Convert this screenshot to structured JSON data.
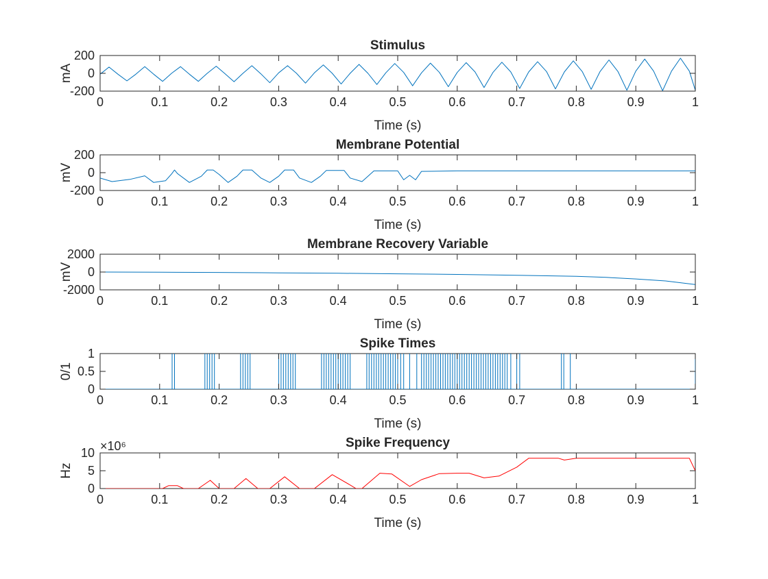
{
  "figure": {
    "background": "#ffffff",
    "axis_color": "#262626"
  },
  "chart_data": [
    {
      "type": "line",
      "title": "Stimulus",
      "xlabel": "Time (s)",
      "ylabel": "mA",
      "xlim": [
        0,
        1
      ],
      "ylim": [
        -200,
        200
      ],
      "xticks": [
        "0",
        "0.1",
        "0.2",
        "0.3",
        "0.4",
        "0.5",
        "0.6",
        "0.7",
        "0.8",
        "0.9",
        "1"
      ],
      "yticks": [
        "-200",
        "0",
        "200"
      ],
      "exponent_label": "",
      "series": [
        {
          "name": "stimulus",
          "color": "#0072BD",
          "points": [
            [
              0,
              -10
            ],
            [
              0.015,
              70
            ],
            [
              0.03,
              -10
            ],
            [
              0.045,
              -85
            ],
            [
              0.06,
              -10
            ],
            [
              0.075,
              75
            ],
            [
              0.09,
              -10
            ],
            [
              0.105,
              -90
            ],
            [
              0.12,
              0
            ],
            [
              0.135,
              75
            ],
            [
              0.15,
              -10
            ],
            [
              0.165,
              -90
            ],
            [
              0.18,
              0
            ],
            [
              0.195,
              80
            ],
            [
              0.21,
              -5
            ],
            [
              0.225,
              -95
            ],
            [
              0.24,
              0
            ],
            [
              0.255,
              85
            ],
            [
              0.27,
              -5
            ],
            [
              0.285,
              -105
            ],
            [
              0.3,
              5
            ],
            [
              0.315,
              85
            ],
            [
              0.33,
              0
            ],
            [
              0.345,
              -110
            ],
            [
              0.36,
              5
            ],
            [
              0.375,
              95
            ],
            [
              0.39,
              0
            ],
            [
              0.405,
              -120
            ],
            [
              0.42,
              0
            ],
            [
              0.435,
              100
            ],
            [
              0.45,
              0
            ],
            [
              0.465,
              -125
            ],
            [
              0.48,
              5
            ],
            [
              0.495,
              110
            ],
            [
              0.51,
              10
            ],
            [
              0.525,
              -140
            ],
            [
              0.54,
              5
            ],
            [
              0.555,
              115
            ],
            [
              0.57,
              10
            ],
            [
              0.585,
              -150
            ],
            [
              0.6,
              10
            ],
            [
              0.615,
              120
            ],
            [
              0.63,
              15
            ],
            [
              0.645,
              -160
            ],
            [
              0.66,
              10
            ],
            [
              0.675,
              125
            ],
            [
              0.69,
              15
            ],
            [
              0.705,
              -170
            ],
            [
              0.72,
              15
            ],
            [
              0.735,
              130
            ],
            [
              0.75,
              20
            ],
            [
              0.765,
              -175
            ],
            [
              0.78,
              15
            ],
            [
              0.795,
              140
            ],
            [
              0.81,
              20
            ],
            [
              0.825,
              -180
            ],
            [
              0.84,
              20
            ],
            [
              0.855,
              150
            ],
            [
              0.87,
              20
            ],
            [
              0.885,
              -190
            ],
            [
              0.9,
              25
            ],
            [
              0.915,
              160
            ],
            [
              0.93,
              25
            ],
            [
              0.945,
              -195
            ],
            [
              0.96,
              25
            ],
            [
              0.975,
              170
            ],
            [
              0.99,
              25
            ],
            [
              1,
              -190
            ]
          ]
        }
      ]
    },
    {
      "type": "line",
      "title": "Membrane Potential",
      "xlabel": "Time (s)",
      "ylabel": "mV",
      "xlim": [
        0,
        1
      ],
      "ylim": [
        -200,
        200
      ],
      "xticks": [
        "0",
        "0.1",
        "0.2",
        "0.3",
        "0.4",
        "0.5",
        "0.6",
        "0.7",
        "0.8",
        "0.9",
        "1"
      ],
      "yticks": [
        "-200",
        "0",
        "200"
      ],
      "exponent_label": "",
      "series": [
        {
          "name": "membrane potential",
          "color": "#0072BD",
          "points": [
            [
              0,
              -60
            ],
            [
              0.02,
              -100
            ],
            [
              0.05,
              -75
            ],
            [
              0.075,
              -35
            ],
            [
              0.09,
              -110
            ],
            [
              0.11,
              -90
            ],
            [
              0.12,
              -15
            ],
            [
              0.125,
              30
            ],
            [
              0.13,
              -10
            ],
            [
              0.15,
              -110
            ],
            [
              0.17,
              -40
            ],
            [
              0.18,
              30
            ],
            [
              0.19,
              30
            ],
            [
              0.2,
              -20
            ],
            [
              0.215,
              -110
            ],
            [
              0.23,
              -40
            ],
            [
              0.24,
              30
            ],
            [
              0.255,
              30
            ],
            [
              0.27,
              -60
            ],
            [
              0.285,
              -110
            ],
            [
              0.3,
              -40
            ],
            [
              0.31,
              30
            ],
            [
              0.325,
              30
            ],
            [
              0.335,
              -60
            ],
            [
              0.355,
              -110
            ],
            [
              0.37,
              -40
            ],
            [
              0.38,
              25
            ],
            [
              0.41,
              25
            ],
            [
              0.42,
              -60
            ],
            [
              0.44,
              -100
            ],
            [
              0.45,
              -40
            ],
            [
              0.46,
              20
            ],
            [
              0.5,
              20
            ],
            [
              0.51,
              -80
            ],
            [
              0.52,
              -30
            ],
            [
              0.53,
              -80
            ],
            [
              0.54,
              15
            ],
            [
              0.6,
              20
            ],
            [
              0.7,
              20
            ],
            [
              0.8,
              20
            ],
            [
              0.9,
              20
            ],
            [
              1,
              20
            ]
          ]
        }
      ]
    },
    {
      "type": "line",
      "title": "Membrane Recovery Variable",
      "xlabel": "Time (s)",
      "ylabel": "mV",
      "xlim": [
        0,
        1
      ],
      "ylim": [
        -2000,
        2000
      ],
      "xticks": [
        "0",
        "0.1",
        "0.2",
        "0.3",
        "0.4",
        "0.5",
        "0.6",
        "0.7",
        "0.8",
        "0.9",
        "1"
      ],
      "yticks": [
        "-2000",
        "0",
        "2000"
      ],
      "exponent_label": "",
      "series": [
        {
          "name": "recovery variable",
          "color": "#0072BD",
          "points": [
            [
              0,
              0
            ],
            [
              0.1,
              -20
            ],
            [
              0.2,
              -50
            ],
            [
              0.3,
              -90
            ],
            [
              0.4,
              -140
            ],
            [
              0.5,
              -200
            ],
            [
              0.6,
              -270
            ],
            [
              0.7,
              -360
            ],
            [
              0.8,
              -480
            ],
            [
              0.85,
              -600
            ],
            [
              0.9,
              -780
            ],
            [
              0.95,
              -1000
            ],
            [
              1,
              -1400
            ]
          ]
        }
      ]
    },
    {
      "type": "line",
      "title": "Spike Times",
      "xlabel": "Time (s)",
      "ylabel": "0/1",
      "xlim": [
        0,
        1
      ],
      "ylim": [
        0,
        1
      ],
      "xticks": [
        "0",
        "0.1",
        "0.2",
        "0.3",
        "0.4",
        "0.5",
        "0.6",
        "0.7",
        "0.8",
        "0.9",
        "1"
      ],
      "yticks": [
        "0",
        "0.5",
        "1"
      ],
      "exponent_label": "",
      "series": [
        {
          "name": "spikes",
          "color": "#0072BD",
          "spike_times": [
            0.121,
            0.125,
            0.176,
            0.18,
            0.184,
            0.188,
            0.192,
            0.236,
            0.24,
            0.244,
            0.248,
            0.252,
            0.3,
            0.304,
            0.308,
            0.312,
            0.316,
            0.32,
            0.324,
            0.328,
            0.372,
            0.376,
            0.38,
            0.384,
            0.388,
            0.392,
            0.396,
            0.4,
            0.404,
            0.408,
            0.412,
            0.416,
            0.42,
            0.448,
            0.452,
            0.456,
            0.46,
            0.464,
            0.468,
            0.472,
            0.476,
            0.48,
            0.484,
            0.488,
            0.492,
            0.496,
            0.5,
            0.505,
            0.51,
            0.52,
            0.532,
            0.54,
            0.544,
            0.548,
            0.552,
            0.556,
            0.56,
            0.564,
            0.568,
            0.572,
            0.576,
            0.58,
            0.584,
            0.588,
            0.592,
            0.596,
            0.6,
            0.604,
            0.608,
            0.612,
            0.616,
            0.62,
            0.624,
            0.628,
            0.632,
            0.636,
            0.64,
            0.644,
            0.648,
            0.652,
            0.656,
            0.66,
            0.664,
            0.668,
            0.672,
            0.676,
            0.68,
            0.684,
            0.69,
            0.7,
            0.705,
            0.775,
            0.779,
            0.79,
            1.0
          ]
        }
      ]
    },
    {
      "type": "line",
      "title": "Spike Frequency",
      "xlabel": "Time (s)",
      "ylabel": "Hz",
      "xlim": [
        0,
        1
      ],
      "ylim": [
        0,
        10
      ],
      "xticks": [
        "0",
        "0.1",
        "0.2",
        "0.3",
        "0.4",
        "0.5",
        "0.6",
        "0.7",
        "0.8",
        "0.9",
        "1"
      ],
      "yticks": [
        "0",
        "5",
        "10"
      ],
      "exponent_label": "×10⁶",
      "series": [
        {
          "name": "spike frequency",
          "color": "#FF0000",
          "points": [
            [
              0,
              0
            ],
            [
              0.105,
              0
            ],
            [
              0.115,
              0.8
            ],
            [
              0.13,
              0.8
            ],
            [
              0.14,
              0
            ],
            [
              0.165,
              0
            ],
            [
              0.185,
              2.3
            ],
            [
              0.2,
              0
            ],
            [
              0.225,
              0
            ],
            [
              0.245,
              2.8
            ],
            [
              0.265,
              0
            ],
            [
              0.285,
              0
            ],
            [
              0.31,
              3.3
            ],
            [
              0.335,
              0
            ],
            [
              0.36,
              0
            ],
            [
              0.39,
              3.9
            ],
            [
              0.42,
              1
            ],
            [
              0.43,
              0
            ],
            [
              0.44,
              0
            ],
            [
              0.47,
              4.3
            ],
            [
              0.49,
              4.1
            ],
            [
              0.52,
              0.6
            ],
            [
              0.54,
              2.5
            ],
            [
              0.57,
              4.2
            ],
            [
              0.6,
              4.3
            ],
            [
              0.62,
              4.3
            ],
            [
              0.645,
              3
            ],
            [
              0.67,
              3.5
            ],
            [
              0.7,
              6
            ],
            [
              0.72,
              8.5
            ],
            [
              0.77,
              8.5
            ],
            [
              0.78,
              8
            ],
            [
              0.8,
              8.5
            ],
            [
              0.9,
              8.5
            ],
            [
              0.99,
              8.5
            ],
            [
              1,
              5
            ]
          ]
        }
      ]
    }
  ]
}
